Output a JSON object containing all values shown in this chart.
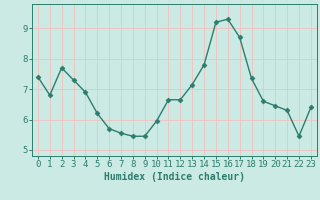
{
  "x": [
    0,
    1,
    2,
    3,
    4,
    5,
    6,
    7,
    8,
    9,
    10,
    11,
    12,
    13,
    14,
    15,
    16,
    17,
    18,
    19,
    20,
    21,
    22,
    23
  ],
  "y": [
    7.4,
    6.8,
    7.7,
    7.3,
    6.9,
    6.2,
    5.7,
    5.55,
    5.45,
    5.45,
    5.95,
    6.65,
    6.65,
    7.15,
    7.8,
    9.2,
    9.3,
    8.7,
    7.35,
    6.6,
    6.45,
    6.3,
    5.45,
    6.4
  ],
  "line_color": "#2d7d6e",
  "marker": "D",
  "markersize": 2.5,
  "linewidth": 1.0,
  "bg_color": "#cceae4",
  "grid_color": "#f0c0c0",
  "axis_color": "#2d7d6e",
  "xlabel": "Humidex (Indice chaleur)",
  "xlim": [
    -0.5,
    23.5
  ],
  "ylim": [
    4.8,
    9.8
  ],
  "yticks": [
    5,
    6,
    7,
    8,
    9
  ],
  "xticks": [
    0,
    1,
    2,
    3,
    4,
    5,
    6,
    7,
    8,
    9,
    10,
    11,
    12,
    13,
    14,
    15,
    16,
    17,
    18,
    19,
    20,
    21,
    22,
    23
  ],
  "xlabel_fontsize": 7,
  "tick_fontsize": 6.5
}
